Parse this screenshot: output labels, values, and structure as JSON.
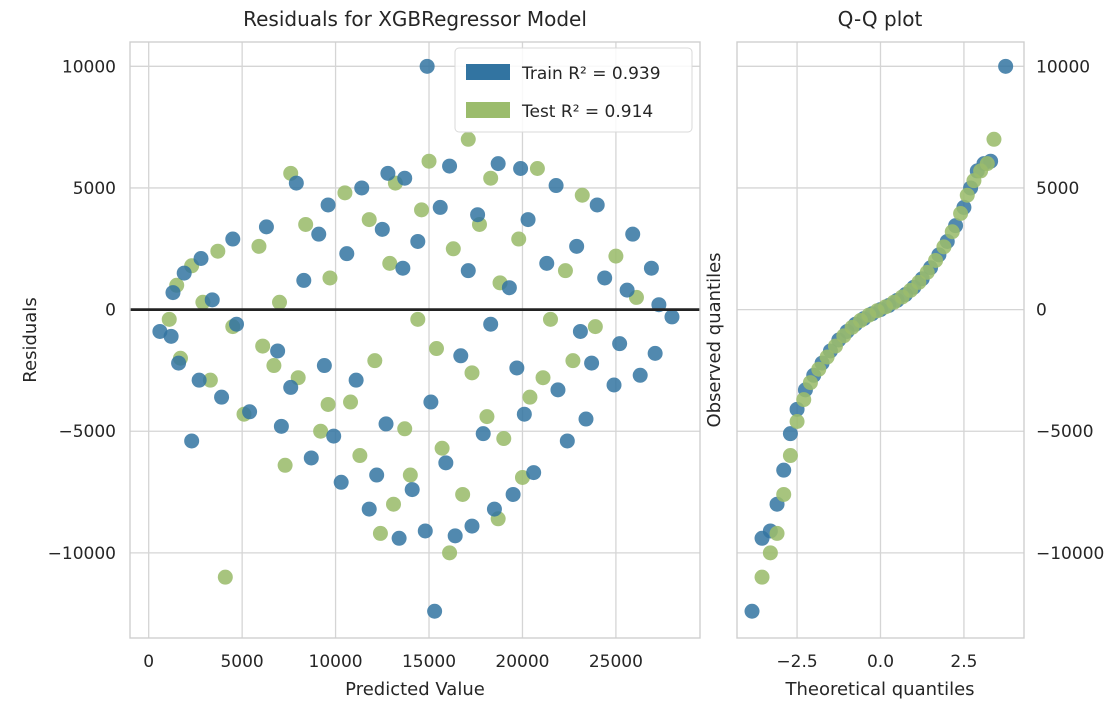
{
  "chart_data": [
    {
      "type": "scatter",
      "title": "Residuals for XGBRegressor Model",
      "xlabel": "Predicted Value",
      "ylabel": "Residuals",
      "xlim": [
        -1000,
        29500
      ],
      "ylim": [
        -13500,
        11000
      ],
      "xticks": [
        0,
        5000,
        10000,
        15000,
        20000,
        25000
      ],
      "xtick_labels": [
        "0",
        "5000",
        "10000",
        "15000",
        "20000",
        "25000"
      ],
      "yticks": [
        10000,
        5000,
        0,
        -5000,
        -10000
      ],
      "ytick_labels": [
        "10000",
        "5000",
        "0",
        "−5000",
        "−10000"
      ],
      "grid": true,
      "legend": "top-right",
      "reference_line": {
        "y": 0,
        "color": "#222222"
      },
      "series": [
        {
          "name": "Train",
          "legend_label": "Train R² = 0.939",
          "color": "#3274a1",
          "points": [
            [
              14900,
              10000
            ],
            [
              15300,
              -12400
            ],
            [
              2300,
              -5400
            ],
            [
              28000,
              -300
            ],
            [
              600,
              -900
            ],
            [
              7900,
              5200
            ],
            [
              9600,
              4300
            ],
            [
              11400,
              5000
            ],
            [
              12800,
              5600
            ],
            [
              13700,
              5400
            ],
            [
              16100,
              5900
            ],
            [
              18700,
              6000
            ],
            [
              19900,
              5800
            ],
            [
              21800,
              5100
            ],
            [
              24000,
              4300
            ],
            [
              25900,
              3100
            ],
            [
              26900,
              1700
            ],
            [
              27300,
              200
            ],
            [
              27100,
              -1800
            ],
            [
              26300,
              -2700
            ],
            [
              24900,
              -3100
            ],
            [
              23400,
              -4500
            ],
            [
              22400,
              -5400
            ],
            [
              20600,
              -6700
            ],
            [
              19500,
              -7600
            ],
            [
              18500,
              -8200
            ],
            [
              17300,
              -8900
            ],
            [
              16400,
              -9300
            ],
            [
              14800,
              -9100
            ],
            [
              13400,
              -9400
            ],
            [
              11800,
              -8200
            ],
            [
              10300,
              -7100
            ],
            [
              8700,
              -6100
            ],
            [
              7100,
              -4800
            ],
            [
              5400,
              -4200
            ],
            [
              3900,
              -3600
            ],
            [
              2700,
              -2900
            ],
            [
              1600,
              -2200
            ],
            [
              1200,
              -1100
            ],
            [
              1300,
              700
            ],
            [
              1900,
              1500
            ],
            [
              2800,
              2100
            ],
            [
              4500,
              2900
            ],
            [
              6300,
              3400
            ],
            [
              9100,
              3100
            ],
            [
              12500,
              3300
            ],
            [
              15600,
              4200
            ],
            [
              17600,
              3900
            ],
            [
              20300,
              3700
            ],
            [
              22900,
              2600
            ],
            [
              24400,
              1300
            ],
            [
              25600,
              800
            ],
            [
              25200,
              -1400
            ],
            [
              23700,
              -2200
            ],
            [
              21900,
              -3300
            ],
            [
              20100,
              -4300
            ],
            [
              17900,
              -5100
            ],
            [
              15900,
              -6300
            ],
            [
              14100,
              -7400
            ],
            [
              12200,
              -6800
            ],
            [
              16700,
              -1900
            ],
            [
              18300,
              -600
            ],
            [
              19300,
              900
            ],
            [
              13600,
              1700
            ],
            [
              11100,
              -2900
            ],
            [
              9400,
              -2300
            ],
            [
              6900,
              -1700
            ],
            [
              4700,
              -600
            ],
            [
              3400,
              400
            ],
            [
              21300,
              1900
            ],
            [
              23100,
              -900
            ],
            [
              8300,
              1200
            ],
            [
              10600,
              2300
            ],
            [
              14400,
              2800
            ],
            [
              17100,
              1600
            ],
            [
              19700,
              -2400
            ],
            [
              15100,
              -3800
            ],
            [
              12700,
              -4700
            ],
            [
              9900,
              -5200
            ],
            [
              7600,
              -3200
            ]
          ]
        },
        {
          "name": "Test",
          "legend_label": "Test R² = 0.914",
          "color": "#9bbc6c",
          "points": [
            [
              4100,
              -11000
            ],
            [
              16100,
              -10000
            ],
            [
              12400,
              -9200
            ],
            [
              17100,
              7000
            ],
            [
              7600,
              5600
            ],
            [
              15000,
              6100
            ],
            [
              20800,
              5800
            ],
            [
              23200,
              4700
            ],
            [
              10500,
              4800
            ],
            [
              13200,
              5200
            ],
            [
              18300,
              5400
            ],
            [
              25000,
              2200
            ],
            [
              26100,
              500
            ],
            [
              21100,
              -2800
            ],
            [
              19000,
              -5300
            ],
            [
              16800,
              -7600
            ],
            [
              14000,
              -6800
            ],
            [
              11300,
              -6000
            ],
            [
              9200,
              -5000
            ],
            [
              7300,
              -6400
            ],
            [
              5100,
              -4300
            ],
            [
              3300,
              -2900
            ],
            [
              1700,
              -2000
            ],
            [
              1100,
              -400
            ],
            [
              1500,
              1000
            ],
            [
              2300,
              1800
            ],
            [
              3700,
              2400
            ],
            [
              5900,
              2600
            ],
            [
              8400,
              3500
            ],
            [
              11800,
              3700
            ],
            [
              14600,
              4100
            ],
            [
              17700,
              3500
            ],
            [
              19800,
              2900
            ],
            [
              22300,
              1600
            ],
            [
              23900,
              -700
            ],
            [
              22700,
              -2100
            ],
            [
              20400,
              -3600
            ],
            [
              18100,
              -4400
            ],
            [
              15700,
              -5700
            ],
            [
              13700,
              -4900
            ],
            [
              10800,
              -3800
            ],
            [
              8000,
              -2800
            ],
            [
              6100,
              -1500
            ],
            [
              4500,
              -700
            ],
            [
              2900,
              300
            ],
            [
              9700,
              1300
            ],
            [
              12900,
              1900
            ],
            [
              16300,
              2500
            ],
            [
              18800,
              1100
            ],
            [
              21500,
              -400
            ],
            [
              15400,
              -1600
            ],
            [
              12100,
              -2100
            ],
            [
              7000,
              300
            ],
            [
              14400,
              -400
            ],
            [
              17300,
              -2600
            ],
            [
              20000,
              -6900
            ],
            [
              18700,
              -8600
            ],
            [
              13100,
              -8000
            ],
            [
              9600,
              -3900
            ],
            [
              6700,
              -2300
            ]
          ]
        }
      ]
    },
    {
      "type": "scatter",
      "title": "Q-Q plot",
      "xlabel": "Theoretical quantiles",
      "ylabel": "Observed quantiles",
      "xlim": [
        -4.3,
        4.3
      ],
      "ylim": [
        -13500,
        11000
      ],
      "xticks": [
        -2.5,
        0.0,
        2.5
      ],
      "xtick_labels": [
        "−2.5",
        "0.0",
        "2.5"
      ],
      "yticks": [
        10000,
        5000,
        0,
        -5000,
        -10000
      ],
      "ytick_labels": [
        "10000",
        "5000",
        "0",
        "−5000",
        "−10000"
      ],
      "y_axis_side": "right",
      "grid": true,
      "series": [
        {
          "name": "Train",
          "color": "#3274a1",
          "points": [
            [
              -3.85,
              -12400
            ],
            [
              -3.55,
              -9400
            ],
            [
              -3.3,
              -9100
            ],
            [
              -3.1,
              -8000
            ],
            [
              -2.9,
              -6600
            ],
            [
              -2.7,
              -5100
            ],
            [
              -2.5,
              -4100
            ],
            [
              -2.25,
              -3300
            ],
            [
              -2.0,
              -2700
            ],
            [
              -1.75,
              -2200
            ],
            [
              -1.5,
              -1700
            ],
            [
              -1.25,
              -1250
            ],
            [
              -1.0,
              -900
            ],
            [
              -0.75,
              -600
            ],
            [
              -0.5,
              -370
            ],
            [
              -0.25,
              -170
            ],
            [
              0.0,
              0
            ],
            [
              0.25,
              170
            ],
            [
              0.5,
              380
            ],
            [
              0.75,
              620
            ],
            [
              1.0,
              920
            ],
            [
              1.25,
              1270
            ],
            [
              1.5,
              1720
            ],
            [
              1.75,
              2250
            ],
            [
              2.0,
              2800
            ],
            [
              2.25,
              3450
            ],
            [
              2.5,
              4200
            ],
            [
              2.7,
              5000
            ],
            [
              2.9,
              5700
            ],
            [
              3.1,
              6000
            ],
            [
              3.3,
              6100
            ],
            [
              3.75,
              10000
            ]
          ]
        },
        {
          "name": "Test",
          "color": "#9bbc6c",
          "points": [
            [
              -3.55,
              -11000
            ],
            [
              -3.3,
              -10000
            ],
            [
              -3.1,
              -9200
            ],
            [
              -2.9,
              -7600
            ],
            [
              -2.7,
              -6000
            ],
            [
              -2.5,
              -4600
            ],
            [
              -2.3,
              -3700
            ],
            [
              -2.1,
              -3000
            ],
            [
              -1.85,
              -2450
            ],
            [
              -1.6,
              -1950
            ],
            [
              -1.35,
              -1500
            ],
            [
              -1.1,
              -1080
            ],
            [
              -0.85,
              -730
            ],
            [
              -0.6,
              -450
            ],
            [
              -0.35,
              -230
            ],
            [
              -0.1,
              -50
            ],
            [
              0.15,
              110
            ],
            [
              0.4,
              300
            ],
            [
              0.65,
              520
            ],
            [
              0.9,
              790
            ],
            [
              1.15,
              1120
            ],
            [
              1.4,
              1530
            ],
            [
              1.65,
              2020
            ],
            [
              1.9,
              2580
            ],
            [
              2.15,
              3200
            ],
            [
              2.4,
              3950
            ],
            [
              2.6,
              4700
            ],
            [
              2.8,
              5300
            ],
            [
              3.0,
              5700
            ],
            [
              3.2,
              6000
            ],
            [
              3.4,
              7000
            ]
          ]
        }
      ]
    }
  ]
}
